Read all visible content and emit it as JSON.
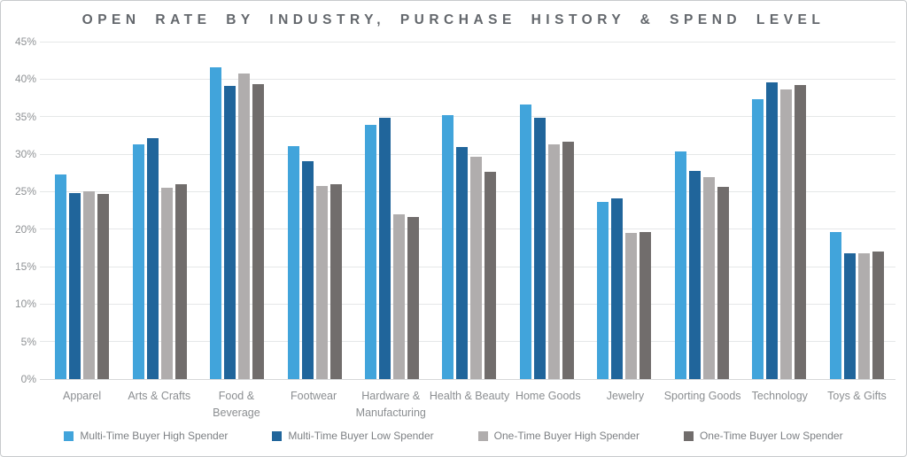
{
  "chart_data": {
    "type": "bar",
    "title": "OPEN RATE BY INDUSTRY, PURCHASE HISTORY & SPEND LEVEL",
    "xlabel": "",
    "ylabel": "",
    "ylim": [
      0,
      45
    ],
    "ytick_labels": [
      "0%",
      "5%",
      "10%",
      "15%",
      "20%",
      "25%",
      "30%",
      "35%",
      "40%",
      "45%"
    ],
    "grid": "horizontal",
    "legend_position": "bottom",
    "categories": [
      "Apparel",
      "Arts & Crafts",
      "Food &\nBeverage",
      "Footwear",
      "Hardware &\nManufacturing",
      "Health & Beauty",
      "Home Goods",
      "Jewelry",
      "Sporting Goods",
      "Technology",
      "Toys & Gifts"
    ],
    "series": [
      {
        "name": "Multi-Time Buyer High Spender",
        "color": "#41a4db",
        "values": [
          27.3,
          31.3,
          41.6,
          31.1,
          33.9,
          35.2,
          36.6,
          23.6,
          30.4,
          37.3,
          19.6
        ]
      },
      {
        "name": "Multi-Time Buyer Low Spender",
        "color": "#20659b",
        "values": [
          24.8,
          32.1,
          39.1,
          29.0,
          34.9,
          31.0,
          34.8,
          24.1,
          27.8,
          39.6,
          16.8
        ]
      },
      {
        "name": "One-Time Buyer High Spender",
        "color": "#b0adad",
        "values": [
          25.1,
          25.5,
          40.8,
          25.7,
          22.0,
          29.6,
          31.3,
          19.5,
          26.9,
          38.6,
          16.8
        ]
      },
      {
        "name": "One-Time Buyer Low Spender",
        "color": "#716d6c",
        "values": [
          24.7,
          26.0,
          39.3,
          26.0,
          21.6,
          27.6,
          31.6,
          19.6,
          25.6,
          39.2,
          17.0
        ]
      }
    ]
  }
}
